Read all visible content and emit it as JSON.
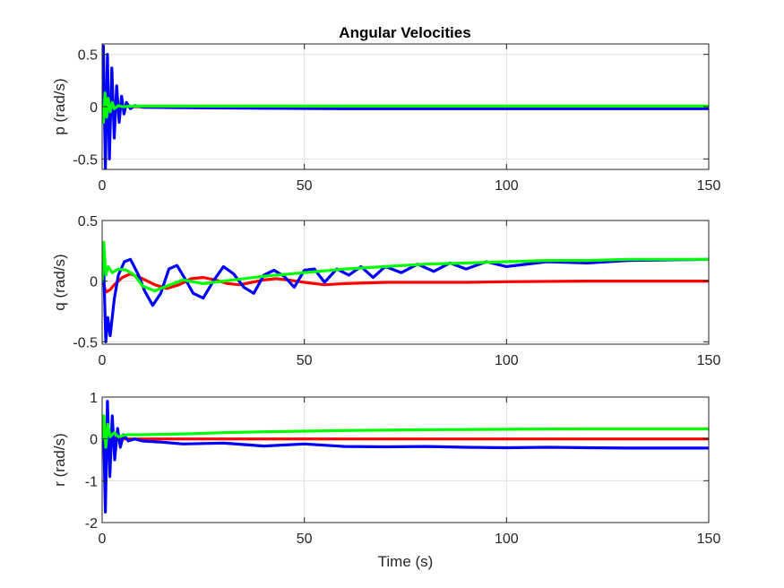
{
  "chart_data": [
    {
      "type": "line",
      "title": "Angular Velocities",
      "ylabel": "p (rad/s)",
      "xlabel": "",
      "xlim": [
        0,
        150
      ],
      "ylim": [
        -0.6,
        0.6
      ],
      "xticks": [
        0,
        50,
        100,
        150
      ],
      "yticks": [
        -0.5,
        0,
        0.5
      ],
      "grid": true,
      "series": [
        {
          "color": "#ff0000",
          "x": [
            0,
            0.5,
            1,
            1.5,
            2,
            3,
            4,
            6,
            10,
            150
          ],
          "values": [
            0,
            -0.06,
            0.05,
            -0.03,
            0.02,
            -0.01,
            0.005,
            0,
            0,
            0
          ]
        },
        {
          "color": "#0000ff",
          "x": [
            0,
            0.3,
            0.8,
            1.3,
            1.8,
            2.4,
            3,
            3.6,
            4.2,
            4.8,
            5.4,
            6,
            7,
            8,
            10,
            20,
            40,
            60,
            80,
            100,
            120,
            150
          ],
          "values": [
            0,
            0.58,
            -0.6,
            0.5,
            -0.5,
            0.37,
            -0.3,
            0.2,
            -0.15,
            0.1,
            -0.07,
            0.04,
            -0.02,
            0.01,
            -0.005,
            -0.01,
            -0.015,
            -0.02,
            -0.02,
            -0.02,
            -0.02,
            -0.02
          ]
        },
        {
          "color": "#00ff00",
          "x": [
            0,
            0.3,
            0.7,
            1.1,
            1.5,
            2,
            2.5,
            3,
            4,
            5,
            8,
            150
          ],
          "values": [
            0,
            -0.15,
            0.13,
            -0.1,
            0.08,
            -0.05,
            0.04,
            -0.02,
            0.01,
            0,
            0.005,
            0.005
          ]
        }
      ]
    },
    {
      "type": "line",
      "ylabel": "q (rad/s)",
      "xlabel": "",
      "xlim": [
        0,
        150
      ],
      "ylim": [
        -0.52,
        0.5
      ],
      "xticks": [
        0,
        50,
        100,
        150
      ],
      "yticks": [
        -0.5,
        0,
        0.5
      ],
      "grid": true,
      "series": [
        {
          "color": "#ff0000",
          "x": [
            0,
            1,
            2,
            3,
            5,
            7,
            10,
            13,
            16,
            19,
            22,
            25,
            28,
            31,
            34,
            37,
            40,
            43,
            46,
            50,
            55,
            60,
            70,
            80,
            90,
            100,
            120,
            150
          ],
          "values": [
            0,
            -0.09,
            -0.07,
            -0.03,
            0.03,
            0.06,
            0.02,
            -0.03,
            -0.06,
            -0.03,
            0.02,
            0.03,
            0.01,
            -0.02,
            -0.03,
            -0.01,
            0.01,
            0.02,
            0.01,
            -0.01,
            -0.03,
            -0.02,
            -0.01,
            -0.01,
            -0.01,
            -0.005,
            0,
            0
          ]
        },
        {
          "color": "#0000ff",
          "x": [
            0,
            0.4,
            0.9,
            1.4,
            2,
            3,
            4,
            5.5,
            7,
            9,
            10.5,
            12.5,
            14.5,
            16.5,
            18.5,
            20.5,
            22.5,
            25,
            27.5,
            30,
            32.5,
            35,
            37.5,
            40,
            42.5,
            45,
            47.5,
            50,
            52.5,
            55,
            58,
            61,
            64,
            67,
            70,
            74,
            78,
            82,
            86,
            90,
            95,
            100,
            110,
            120,
            130,
            150
          ],
          "values": [
            0,
            0.1,
            -0.5,
            -0.3,
            -0.45,
            -0.15,
            0.05,
            0.16,
            0.18,
            0.05,
            -0.08,
            -0.2,
            -0.1,
            0.1,
            0.13,
            0.02,
            -0.1,
            -0.14,
            0.0,
            0.12,
            0.06,
            -0.05,
            -0.1,
            0.05,
            0.09,
            0.04,
            -0.05,
            0.09,
            0.1,
            -0.01,
            0.1,
            0.05,
            0.12,
            0.03,
            0.12,
            0.07,
            0.14,
            0.08,
            0.15,
            0.1,
            0.16,
            0.12,
            0.16,
            0.15,
            0.17,
            0.18
          ]
        },
        {
          "color": "#00ff00",
          "x": [
            0,
            0.4,
            0.9,
            1.5,
            2.5,
            4,
            6,
            8,
            10,
            13,
            16,
            20,
            25,
            30,
            40,
            50,
            60,
            70,
            80,
            90,
            100,
            110,
            120,
            130,
            150
          ],
          "values": [
            0,
            0.32,
            0.05,
            0.12,
            0.07,
            0.1,
            0.09,
            0.05,
            -0.04,
            -0.08,
            -0.04,
            0.01,
            -0.02,
            0.0,
            0.04,
            0.07,
            0.1,
            0.12,
            0.14,
            0.15,
            0.16,
            0.17,
            0.17,
            0.18,
            0.18
          ]
        }
      ]
    },
    {
      "type": "line",
      "ylabel": "r (rad/s)",
      "xlabel": "Time (s)",
      "xlim": [
        0,
        150
      ],
      "ylim": [
        -2,
        1
      ],
      "xticks": [
        0,
        50,
        100,
        150
      ],
      "yticks": [
        -2,
        -1,
        0,
        1
      ],
      "grid": true,
      "series": [
        {
          "color": "#ff0000",
          "x": [
            0,
            0.5,
            1,
            1.5,
            2.5,
            4,
            6,
            150
          ],
          "values": [
            0,
            -0.1,
            0.08,
            -0.05,
            0.03,
            0.0,
            0,
            0
          ]
        },
        {
          "color": "#0000ff",
          "x": [
            0,
            0.3,
            0.8,
            1.3,
            1.9,
            2.5,
            3.1,
            3.8,
            4.5,
            5.3,
            6.5,
            8,
            10,
            15,
            20,
            30,
            40,
            50,
            60,
            70,
            80,
            90,
            100,
            110,
            120,
            130,
            140,
            150
          ],
          "values": [
            0,
            0.5,
            -1.75,
            0.9,
            -0.9,
            0.55,
            -0.5,
            0.25,
            -0.2,
            0.1,
            -0.05,
            0.0,
            -0.05,
            -0.08,
            -0.12,
            -0.1,
            -0.17,
            -0.12,
            -0.18,
            -0.19,
            -0.18,
            -0.2,
            -0.21,
            -0.2,
            -0.21,
            -0.22,
            -0.22,
            -0.22
          ]
        },
        {
          "color": "#00ff00",
          "x": [
            0,
            0.4,
            0.9,
            1.4,
            2,
            3,
            4,
            6,
            10,
            20,
            30,
            40,
            60,
            80,
            100,
            120,
            150
          ],
          "values": [
            0,
            0.55,
            -0.2,
            0.35,
            0.05,
            0.15,
            0.05,
            0.1,
            0.1,
            0.12,
            0.15,
            0.17,
            0.2,
            0.22,
            0.23,
            0.24,
            0.24
          ]
        }
      ]
    }
  ]
}
